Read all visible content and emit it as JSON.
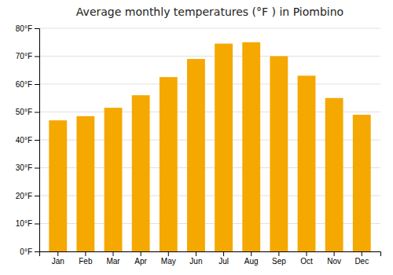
{
  "chart_data": {
    "type": "bar",
    "title": "Average monthly temperatures (°F ) in Piombino",
    "categories": [
      "Jan",
      "Feb",
      "Mar",
      "Apr",
      "May",
      "Jun",
      "Jul",
      "Aug",
      "Sep",
      "Oct",
      "Nov",
      "Dec"
    ],
    "values": [
      47,
      48.5,
      51.5,
      56,
      62.5,
      69,
      74.5,
      75,
      70,
      63,
      55,
      49
    ],
    "color": "#F5A800",
    "ylim": [
      0,
      80
    ],
    "yticks": [
      {
        "value": 0,
        "label": "0°F"
      },
      {
        "value": 10,
        "label": "10°F"
      },
      {
        "value": 20,
        "label": "20°F"
      },
      {
        "value": 30,
        "label": "30°F"
      },
      {
        "value": 40,
        "label": "40°F"
      },
      {
        "value": 50,
        "label": "50°F"
      },
      {
        "value": 60,
        "label": "60°F"
      },
      {
        "value": 70,
        "label": "70°F"
      },
      {
        "value": 80,
        "label": "80°F"
      }
    ],
    "grid": true
  }
}
